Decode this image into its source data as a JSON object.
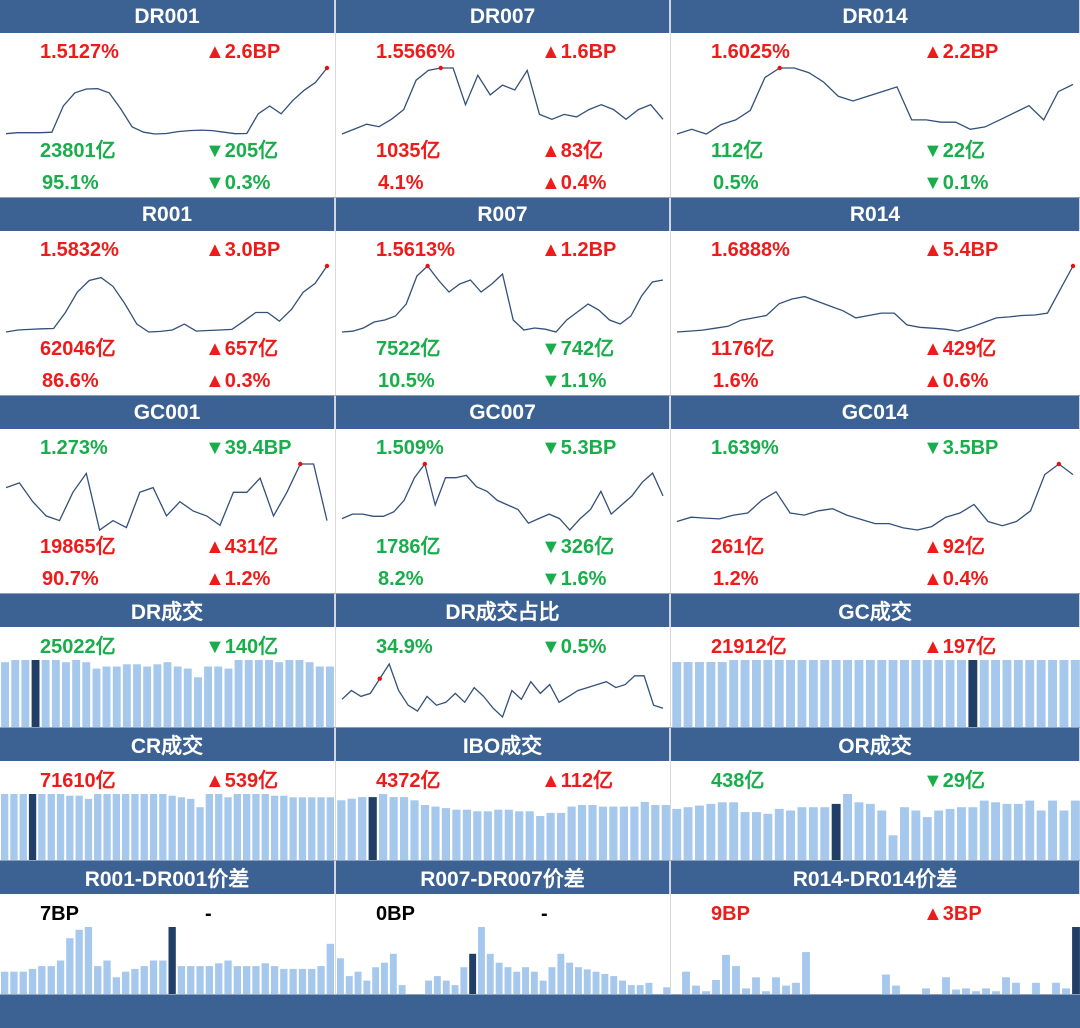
{
  "colors": {
    "header_bg": "#3c6293",
    "header_text": "#ffffff",
    "up": "#ee1b1b",
    "down": "#19ad4b",
    "line": "#33507a",
    "bar": "#a6c8ec",
    "bar_highlight": "#213f66",
    "marker": "#e81010"
  },
  "panels": [
    {
      "title": "DR001",
      "kind": "line",
      "rate": "1.5127%",
      "rate_color": "red",
      "rate_chg": "▲2.6BP",
      "rate_chg_color": "red",
      "vol": "23801亿",
      "vol_color": "green",
      "vol_chg": "▼205亿",
      "vol_chg_color": "green",
      "share": "95.1%",
      "share_color": "green",
      "share_chg": "▼0.3%",
      "share_chg_color": "green"
    },
    {
      "title": "DR007",
      "kind": "line",
      "rate": "1.5566%",
      "rate_color": "red",
      "rate_chg": "▲1.6BP",
      "rate_chg_color": "red",
      "vol": "1035亿",
      "vol_color": "red",
      "vol_chg": "▲83亿",
      "vol_chg_color": "red",
      "share": "4.1%",
      "share_color": "red",
      "share_chg": "▲0.4%",
      "share_chg_color": "red"
    },
    {
      "title": "DR014",
      "kind": "line",
      "rate": "1.6025%",
      "rate_color": "red",
      "rate_chg": "▲2.2BP",
      "rate_chg_color": "red",
      "vol": "112亿",
      "vol_color": "green",
      "vol_chg": "▼22亿",
      "vol_chg_color": "green",
      "share": "0.5%",
      "share_color": "green",
      "share_chg": "▼0.1%",
      "share_chg_color": "green"
    },
    {
      "title": "R001",
      "kind": "line",
      "rate": "1.5832%",
      "rate_color": "red",
      "rate_chg": "▲3.0BP",
      "rate_chg_color": "red",
      "vol": "62046亿",
      "vol_color": "red",
      "vol_chg": "▲657亿",
      "vol_chg_color": "red",
      "share": "86.6%",
      "share_color": "red",
      "share_chg": "▲0.3%",
      "share_chg_color": "red"
    },
    {
      "title": "R007",
      "kind": "line",
      "rate": "1.5613%",
      "rate_color": "red",
      "rate_chg": "▲1.2BP",
      "rate_chg_color": "red",
      "vol": "7522亿",
      "vol_color": "green",
      "vol_chg": "▼742亿",
      "vol_chg_color": "green",
      "share": "10.5%",
      "share_color": "green",
      "share_chg": "▼1.1%",
      "share_chg_color": "green"
    },
    {
      "title": "R014",
      "kind": "line",
      "rate": "1.6888%",
      "rate_color": "red",
      "rate_chg": "▲5.4BP",
      "rate_chg_color": "red",
      "vol": "1176亿",
      "vol_color": "red",
      "vol_chg": "▲429亿",
      "vol_chg_color": "red",
      "share": "1.6%",
      "share_color": "red",
      "share_chg": "▲0.6%",
      "share_chg_color": "red"
    },
    {
      "title": "GC001",
      "kind": "line",
      "rate": "1.273%",
      "rate_color": "green",
      "rate_chg": "▼39.4BP",
      "rate_chg_color": "green",
      "vol": "19865亿",
      "vol_color": "red",
      "vol_chg": "▲431亿",
      "vol_chg_color": "red",
      "share": "90.7%",
      "share_color": "red",
      "share_chg": "▲1.2%",
      "share_chg_color": "red"
    },
    {
      "title": "GC007",
      "kind": "line",
      "rate": "1.509%",
      "rate_color": "green",
      "rate_chg": "▼5.3BP",
      "rate_chg_color": "green",
      "vol": "1786亿",
      "vol_color": "green",
      "vol_chg": "▼326亿",
      "vol_chg_color": "green",
      "share": "8.2%",
      "share_color": "green",
      "share_chg": "▼1.6%",
      "share_chg_color": "green"
    },
    {
      "title": "GC014",
      "kind": "line",
      "rate": "1.639%",
      "rate_color": "green",
      "rate_chg": "▼3.5BP",
      "rate_chg_color": "green",
      "vol": "261亿",
      "vol_color": "red",
      "vol_chg": "▲92亿",
      "vol_chg_color": "red",
      "share": "1.2%",
      "share_color": "red",
      "share_chg": "▲0.4%",
      "share_chg_color": "red"
    },
    {
      "title": "DR成交",
      "kind": "bar",
      "value": "25022亿",
      "value_color": "green",
      "chg": "▼140亿",
      "chg_color": "green"
    },
    {
      "title": "DR成交占比",
      "kind": "line",
      "value": "34.9%",
      "value_color": "green",
      "chg": "▼0.5%",
      "chg_color": "green"
    },
    {
      "title": "GC成交",
      "kind": "bar",
      "value": "21912亿",
      "value_color": "red",
      "chg": "▲197亿",
      "chg_color": "red"
    },
    {
      "title": "CR成交",
      "kind": "bar",
      "value": "71610亿",
      "value_color": "red",
      "chg": "▲539亿",
      "chg_color": "red"
    },
    {
      "title": "IBO成交",
      "kind": "bar",
      "value": "4372亿",
      "value_color": "red",
      "chg": "▲112亿",
      "chg_color": "red"
    },
    {
      "title": "OR成交",
      "kind": "bar",
      "value": "438亿",
      "value_color": "green",
      "chg": "▼29亿",
      "chg_color": "green"
    },
    {
      "title": "R001-DR001价差",
      "kind": "bar",
      "value": "7BP",
      "value_color": "black",
      "chg": "-",
      "chg_color": "black"
    },
    {
      "title": "R007-DR007价差",
      "kind": "bar",
      "value": "0BP",
      "value_color": "black",
      "chg": "-",
      "chg_color": "black"
    },
    {
      "title": "R014-DR014价差",
      "kind": "bar",
      "value": "9BP",
      "value_color": "red",
      "chg": "▲3BP",
      "chg_color": "red"
    }
  ],
  "chart_data": [
    {
      "type": "line",
      "title": "DR001",
      "values": [
        0.4,
        0.8,
        0.8,
        0.8,
        1.0,
        11,
        16,
        17.5,
        17.6,
        16,
        10,
        3,
        1,
        0.3,
        0.5,
        1.2,
        1.6,
        1.8,
        1.6,
        1.0,
        0.4,
        0.5,
        8,
        11,
        8,
        13,
        17,
        20,
        25.5
      ],
      "highlight_index": 28
    },
    {
      "type": "line",
      "title": "DR007",
      "values": [
        0,
        1,
        2,
        1.5,
        3,
        5,
        11,
        13,
        13.5,
        13.5,
        6,
        12,
        8,
        10,
        9,
        13,
        4,
        3,
        4,
        3.5,
        5,
        6,
        5,
        3,
        5,
        6,
        3
      ],
      "highlight_index": 8
    },
    {
      "type": "line",
      "title": "DR014",
      "values": [
        0,
        1,
        0,
        2,
        3,
        5,
        12,
        14,
        14,
        13,
        11,
        8,
        7,
        8,
        9,
        10,
        3,
        3,
        2.5,
        2.5,
        1,
        1.5,
        3,
        4.5,
        6,
        3,
        9,
        10.5
      ],
      "highlight_index": 7
    },
    {
      "type": "line",
      "title": "R001",
      "values": [
        0.3,
        1,
        1.2,
        1.4,
        1.5,
        7,
        14,
        18,
        19,
        16,
        10,
        3,
        0.3,
        0.5,
        1,
        3,
        0.6,
        0.8,
        1,
        1.2,
        4,
        7,
        7,
        4,
        8,
        14,
        17,
        23
      ],
      "highlight_index": 27
    },
    {
      "type": "line",
      "title": "R007",
      "values": [
        0,
        0.2,
        1,
        2.5,
        3,
        4,
        7,
        14,
        16.5,
        13,
        10,
        12,
        13,
        10,
        12,
        14.5,
        3,
        0.5,
        1,
        0.7,
        0,
        3,
        5,
        7,
        5.5,
        3,
        2,
        4,
        9,
        12.5,
        13
      ],
      "highlight_index": 8
    },
    {
      "type": "line",
      "title": "R014",
      "values": [
        0,
        0.2,
        0.4,
        0.8,
        1.2,
        2.5,
        3,
        3.5,
        6,
        7,
        7.5,
        6.5,
        5.5,
        4.5,
        3,
        3.5,
        4,
        4,
        1.5,
        1,
        0.8,
        0.6,
        0.2,
        1,
        2,
        3,
        3.2,
        3.5,
        3.6,
        4,
        9,
        14
      ],
      "highlight_index": 31
    },
    {
      "type": "line",
      "title": "GC001",
      "values": [
        9,
        10,
        6,
        3,
        2,
        8,
        12,
        0,
        2,
        0.5,
        8,
        9,
        3,
        6,
        4,
        3,
        1,
        8,
        8,
        11,
        3,
        8,
        14,
        14,
        2
      ],
      "highlight_index": 22
    },
    {
      "type": "line",
      "title": "GC007",
      "values": [
        3,
        4,
        4,
        3.5,
        3.5,
        4.5,
        7,
        12,
        15,
        6,
        12,
        12,
        12.5,
        10,
        9,
        7,
        6,
        5,
        2,
        3,
        4,
        3,
        0.5,
        3,
        5,
        9,
        4,
        6,
        8,
        11,
        13,
        8
      ],
      "highlight_index": 8
    },
    {
      "type": "line",
      "title": "GC014",
      "values": [
        2,
        3,
        2.8,
        2.6,
        3.5,
        4,
        7,
        9,
        4,
        3.5,
        4.5,
        5,
        3.5,
        2.5,
        1.5,
        1.5,
        0.5,
        0,
        0.8,
        3,
        4,
        6,
        2,
        1,
        2,
        4.5,
        13,
        15.5,
        13
      ],
      "highlight_index": 27
    },
    {
      "type": "bar",
      "title": "DR成交",
      "values": [
        30,
        31,
        31,
        31,
        31,
        31,
        30,
        31,
        30,
        27,
        28,
        28,
        29,
        29,
        28,
        29,
        30,
        28,
        27,
        23,
        28,
        28,
        27,
        31,
        31,
        31,
        31,
        30,
        31,
        31,
        30,
        28,
        28
      ],
      "highlight_index": 3
    },
    {
      "type": "line",
      "title": "DR成交占比",
      "values": [
        4,
        7,
        5,
        6,
        11,
        16,
        7,
        2,
        0,
        5,
        2,
        3,
        6,
        3,
        8,
        5,
        1,
        -2,
        7,
        4,
        10,
        6,
        9,
        3,
        5,
        7,
        8,
        9,
        10,
        8,
        9,
        12,
        12,
        2,
        1
      ],
      "highlight_index": 4
    },
    {
      "type": "bar",
      "title": "GC成交",
      "values": [
        33,
        33,
        33,
        33,
        33,
        34,
        34,
        34,
        34,
        34,
        34,
        34,
        34,
        34,
        34,
        34,
        34,
        34,
        34,
        34,
        34,
        34,
        34,
        34,
        34,
        34,
        34,
        34,
        34,
        34,
        34,
        34,
        34,
        34,
        34,
        34
      ],
      "highlight_index": 26
    },
    {
      "type": "bar",
      "title": "CR成交",
      "values": [
        40,
        40,
        40,
        40,
        40,
        40,
        40,
        39,
        39,
        37,
        40,
        40,
        40,
        40,
        40,
        40,
        40,
        40,
        39,
        38,
        37,
        32,
        40,
        40,
        38,
        40,
        40,
        40,
        40,
        39,
        39,
        38,
        38,
        38,
        38,
        38
      ],
      "highlight_index": 3
    },
    {
      "type": "bar",
      "title": "IBO成交",
      "values": [
        38,
        39,
        40,
        40,
        42,
        40,
        40,
        38,
        35,
        34,
        33,
        32,
        32,
        31,
        31,
        32,
        32,
        31,
        31,
        28,
        30,
        30,
        34,
        35,
        35,
        34,
        34,
        34,
        34,
        37,
        35,
        35
      ],
      "highlight_index": 3
    },
    {
      "type": "bar",
      "title": "OR成交",
      "values": [
        31,
        32,
        33,
        34,
        35,
        35,
        29,
        29,
        28,
        31,
        30,
        32,
        32,
        32,
        34,
        40,
        35,
        34,
        30,
        15,
        32,
        30,
        26,
        30,
        31,
        32,
        32,
        36,
        35,
        34,
        34,
        36,
        30,
        36,
        30,
        36
      ],
      "highlight_index": 14
    },
    {
      "type": "bar",
      "title": "R001-DR001价差",
      "values": [
        4,
        4,
        4,
        4.5,
        5,
        5,
        6,
        10,
        11.5,
        12,
        5,
        6,
        3,
        4,
        4.5,
        5,
        6,
        6,
        12,
        5,
        5,
        5,
        5,
        5.5,
        6,
        5,
        5,
        5,
        5.5,
        5,
        4.5,
        4.5,
        4.5,
        4.5,
        5,
        9
      ],
      "highlight_index": 18
    },
    {
      "type": "bar",
      "title": "R007-DR007价差",
      "values": [
        8,
        4,
        5,
        3,
        6,
        7,
        9,
        2,
        0,
        0,
        3,
        4,
        3,
        2,
        6,
        9,
        15,
        9,
        7,
        6,
        5,
        6,
        5,
        3,
        6,
        9,
        7,
        6,
        5.5,
        5,
        4.5,
        4,
        3,
        2,
        2,
        2.5,
        0,
        1.5
      ],
      "highlight_index": 15
    },
    {
      "type": "bar",
      "title": "R014-DR014价差",
      "values": [
        0,
        4,
        1.5,
        0.5,
        2.5,
        7,
        5,
        1,
        3,
        0.5,
        3,
        1.5,
        2,
        7.5,
        0,
        0,
        0,
        0,
        0,
        0,
        0,
        3.5,
        1.5,
        0,
        0,
        1,
        0,
        3,
        0.8,
        1,
        0.5,
        1,
        0.5,
        3,
        2,
        0,
        2,
        0,
        2,
        1,
        12
      ],
      "highlight_index": 40
    }
  ]
}
